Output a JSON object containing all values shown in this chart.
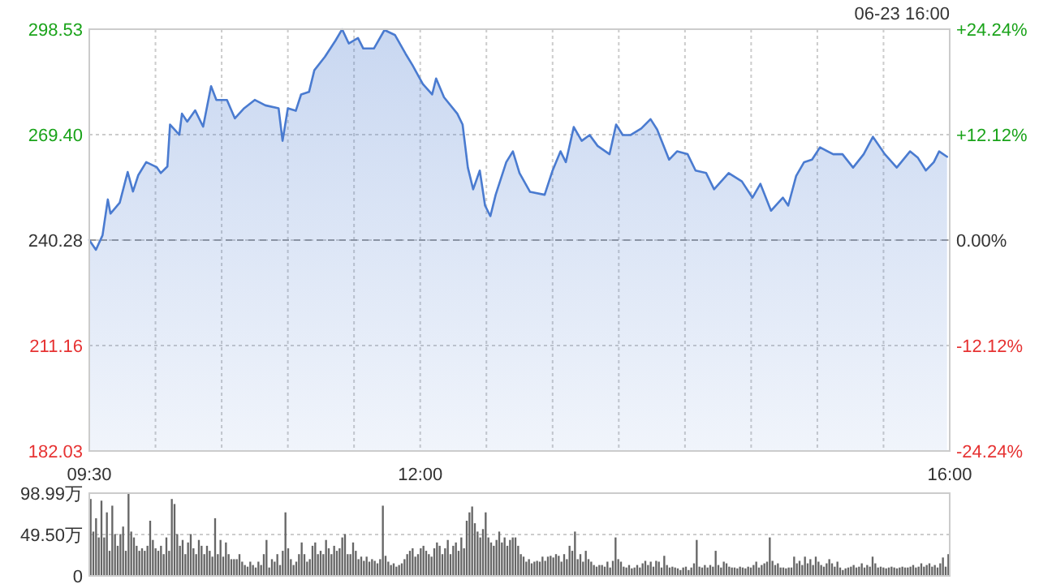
{
  "chart_data": [
    {
      "type": "area",
      "annotations": [
        "06-23 16:00"
      ],
      "x": [
        9.5,
        9.55,
        9.6,
        9.64,
        9.66,
        9.73,
        9.79,
        9.83,
        9.87,
        9.93,
        10.01,
        10.04,
        10.09,
        10.11,
        10.18,
        10.2,
        10.24,
        10.3,
        10.36,
        10.42,
        10.46,
        10.54,
        10.6,
        10.67,
        10.75,
        10.83,
        10.93,
        10.96,
        11.0,
        11.06,
        11.1,
        11.16,
        11.2,
        11.28,
        11.36,
        11.41,
        11.46,
        11.53,
        11.57,
        11.65,
        11.73,
        11.81,
        11.89,
        11.94,
        12.02,
        12.09,
        12.12,
        12.18,
        12.28,
        12.32,
        12.36,
        12.4,
        12.45,
        12.49,
        12.53,
        12.57,
        12.65,
        12.7,
        12.75,
        12.83,
        12.94,
        13.0,
        13.06,
        13.1,
        13.16,
        13.22,
        13.28,
        13.34,
        13.43,
        13.48,
        13.53,
        13.59,
        13.67,
        13.74,
        13.79,
        13.88,
        13.94,
        14.02,
        14.08,
        14.16,
        14.22,
        14.33,
        14.43,
        14.51,
        14.57,
        14.65,
        14.74,
        14.78,
        14.84,
        14.9,
        14.96,
        15.02,
        15.12,
        15.19,
        15.27,
        15.35,
        15.42,
        15.51,
        15.6,
        15.7,
        15.76,
        15.82,
        15.88,
        15.92,
        15.98
      ],
      "series": [
        {
          "color": "#4a7bd0",
          "values": [
            240.3,
            237.6,
            241.6,
            251.5,
            247.6,
            250.6,
            259.1,
            253.7,
            258.2,
            261.8,
            260.4,
            258.8,
            260.6,
            272.2,
            269.4,
            275.2,
            273,
            276.1,
            271.6,
            282.8,
            279,
            279,
            273.9,
            276.7,
            279,
            277.5,
            276.7,
            267.7,
            276.7,
            276,
            280.5,
            281.2,
            287.2,
            290.9,
            295.4,
            298.5,
            294.6,
            296.1,
            293.2,
            293.2,
            298.3,
            296.9,
            291.7,
            288.7,
            283.4,
            280.5,
            284.9,
            279.7,
            275.2,
            272.2,
            260.3,
            254.3,
            259.5,
            249.8,
            246.9,
            252.8,
            261.8,
            264.8,
            258.8,
            253.6,
            252.8,
            259.5,
            264.8,
            261.8,
            271.5,
            267.7,
            269.3,
            266.3,
            264,
            272.2,
            269.3,
            269.3,
            271.1,
            273.7,
            270.8,
            262.5,
            264.8,
            264,
            259.5,
            258.8,
            254.3,
            258.8,
            256.5,
            252,
            255.8,
            248.4,
            252,
            249.8,
            258,
            261.8,
            262.5,
            265.9,
            264,
            264,
            260.3,
            264,
            268.8,
            264,
            260.3,
            264.8,
            263,
            259.5,
            261.8,
            264.8,
            263.3
          ]
        }
      ],
      "xlim": [
        9.5,
        16
      ],
      "xticks": [
        {
          "value": 9.5,
          "label": "09:30"
        },
        {
          "value": 10,
          "label": null
        },
        {
          "value": 10.5,
          "label": null
        },
        {
          "value": 11,
          "label": null
        },
        {
          "value": 11.5,
          "label": null
        },
        {
          "value": 12,
          "label": "12:00"
        },
        {
          "value": 12.5,
          "label": null
        },
        {
          "value": 13,
          "label": null
        },
        {
          "value": 13.5,
          "label": null
        },
        {
          "value": 14,
          "label": null
        },
        {
          "value": 14.5,
          "label": null
        },
        {
          "value": 15,
          "label": null
        },
        {
          "value": 15.5,
          "label": null
        },
        {
          "value": 16,
          "label": "16:00"
        }
      ],
      "ylim": [
        182.03,
        298.53
      ],
      "yticks": [
        182.03,
        211.16,
        240.28,
        {
          "value": 269.4,
          "label": "269.40"
        },
        298.53
      ],
      "y2lim": [
        -24.24,
        24.24
      ],
      "y2ticks": [
        {
          "value": -24.24,
          "label": "-24.24%"
        },
        {
          "value": -12.12,
          "label": "-12.12%"
        },
        {
          "value": 0,
          "label": "0.00%"
        },
        {
          "value": 12.12,
          "label": "+12.12%"
        },
        {
          "value": 24.24,
          "label": "+24.24%"
        }
      ],
      "ref_lines": [
        {
          "axis": "y",
          "value": 240.28,
          "color": "#999999",
          "line_style": "dashed"
        }
      ],
      "grid": true
    },
    {
      "type": "bar",
      "color": "#666666",
      "tick_labels": "y",
      "grid": "y",
      "categories": [
        null,
        null,
        null,
        null,
        null,
        null,
        null,
        null,
        null,
        null,
        null,
        null,
        null,
        null,
        null,
        null,
        null,
        null,
        null,
        null,
        null,
        null,
        null,
        null,
        null,
        null,
        null,
        null,
        null,
        null,
        null,
        null,
        null,
        null,
        null,
        null,
        null,
        null,
        null,
        null,
        null,
        null,
        null,
        null,
        null,
        null,
        null,
        null,
        null,
        null,
        null,
        null,
        null,
        null,
        null,
        null,
        null,
        null,
        null,
        null,
        null,
        null,
        null,
        null,
        null,
        null,
        null,
        null,
        null,
        null,
        null,
        null,
        null,
        null,
        null,
        null,
        null,
        null,
        null,
        null,
        null,
        null,
        null,
        null,
        null,
        null,
        null,
        null,
        null,
        null,
        null,
        null,
        null,
        null,
        null,
        null,
        null,
        null,
        null,
        null,
        null,
        null,
        null,
        null,
        null,
        null,
        null,
        null,
        null,
        null,
        null,
        null,
        null,
        null,
        null,
        null,
        null,
        null,
        null,
        null,
        null,
        null,
        null,
        null,
        null,
        null,
        null,
        null,
        null,
        null,
        null,
        null,
        null,
        null,
        null,
        null,
        null,
        null,
        null,
        null,
        null,
        null,
        null,
        null,
        null,
        null,
        null,
        null,
        null,
        null,
        null,
        null,
        null,
        null,
        null,
        null,
        null,
        null,
        null,
        null,
        null,
        null,
        null,
        null,
        null,
        null,
        null,
        null,
        null,
        null,
        null,
        null,
        null,
        null,
        null,
        null,
        null,
        null,
        null,
        null,
        null,
        null,
        null,
        null,
        null,
        null,
        null,
        null,
        null,
        null,
        null,
        null,
        null,
        null,
        null,
        null,
        null,
        null,
        null,
        null,
        null,
        null,
        null,
        null,
        null,
        null,
        null,
        null,
        null,
        null,
        null,
        null,
        null,
        null,
        null,
        null,
        null,
        null,
        null,
        null,
        null,
        null,
        null,
        null,
        null,
        null,
        null,
        null,
        null,
        null,
        null,
        null,
        null,
        null,
        null,
        null,
        null,
        null,
        null,
        null,
        null,
        null,
        null,
        null,
        null,
        null,
        null,
        null,
        null,
        null,
        null,
        null,
        null,
        null,
        null,
        null,
        null,
        null,
        null,
        null,
        null,
        null,
        null,
        null,
        null,
        null,
        null,
        null,
        null,
        null,
        null,
        null,
        null,
        null,
        null,
        null,
        null,
        null,
        null,
        null,
        null,
        null,
        null,
        null,
        null,
        null,
        null,
        null,
        null,
        null,
        null,
        null,
        null,
        null,
        null,
        null,
        null,
        null,
        null,
        null,
        null,
        null,
        null,
        null,
        null,
        null,
        null,
        null,
        null,
        null,
        null,
        null,
        null,
        null,
        null,
        null,
        null,
        null
      ],
      "values": [
        92,
        53,
        69,
        46,
        90,
        46,
        76,
        30,
        84,
        50,
        36,
        50,
        59,
        30,
        98,
        53,
        46,
        36,
        30,
        33,
        30,
        36,
        66,
        43,
        33,
        30,
        36,
        26,
        46,
        30,
        92,
        86,
        50,
        36,
        43,
        26,
        40,
        50,
        33,
        26,
        43,
        36,
        26,
        36,
        30,
        23,
        69,
        26,
        43,
        23,
        40,
        26,
        20,
        20,
        20,
        26,
        17,
        13,
        11,
        17,
        13,
        10,
        17,
        13,
        26,
        43,
        10,
        20,
        17,
        26,
        13,
        30,
        76,
        33,
        20,
        13,
        17,
        26,
        40,
        26,
        17,
        20,
        36,
        40,
        26,
        30,
        26,
        43,
        33,
        26,
        36,
        30,
        33,
        46,
        50,
        26,
        26,
        40,
        30,
        20,
        23,
        18,
        23,
        17,
        20,
        18,
        15,
        20,
        84,
        24,
        17,
        13,
        15,
        11,
        13,
        15,
        20,
        26,
        30,
        33,
        23,
        26,
        33,
        36,
        30,
        26,
        23,
        33,
        40,
        36,
        26,
        33,
        43,
        26,
        36,
        40,
        30,
        46,
        33,
        66,
        76,
        83,
        63,
        53,
        46,
        56,
        76,
        46,
        40,
        36,
        43,
        53,
        40,
        46,
        36,
        43,
        46,
        46,
        36,
        26,
        23,
        17,
        20,
        15,
        17,
        18,
        17,
        23,
        18,
        23,
        24,
        22,
        26,
        24,
        17,
        26,
        20,
        36,
        30,
        53,
        20,
        26,
        17,
        30,
        20,
        17,
        13,
        11,
        13,
        13,
        11,
        17,
        10,
        18,
        46,
        20,
        17,
        11,
        10,
        13,
        9,
        10,
        13,
        10,
        15,
        18,
        13,
        17,
        11,
        18,
        17,
        10,
        24,
        13,
        10,
        11,
        10,
        9,
        7,
        10,
        11,
        7,
        10,
        15,
        43,
        11,
        10,
        13,
        10,
        13,
        11,
        30,
        13,
        10,
        17,
        15,
        11,
        10,
        10,
        9,
        11,
        10,
        9,
        11,
        10,
        13,
        17,
        10,
        13,
        15,
        17,
        46,
        18,
        13,
        15,
        10,
        10,
        9,
        10,
        10,
        23,
        15,
        18,
        13,
        23,
        15,
        20,
        13,
        23,
        17,
        13,
        11,
        15,
        20,
        15,
        11,
        17,
        10,
        7,
        9,
        10,
        11,
        13,
        10,
        11,
        15,
        10,
        13,
        11,
        23,
        15,
        10,
        11,
        10,
        9,
        10,
        11,
        10,
        9,
        10,
        11,
        10,
        10,
        11,
        13,
        10,
        11,
        15,
        11,
        13,
        15,
        11,
        13,
        10,
        15,
        22,
        11,
        26
      ],
      "ylim": [
        0,
        98.99
      ],
      "yticks": [
        0,
        {
          "value": 49.5,
          "label": "49.50万"
        },
        {
          "value": 98.99,
          "label": "98.99万"
        }
      ]
    }
  ]
}
